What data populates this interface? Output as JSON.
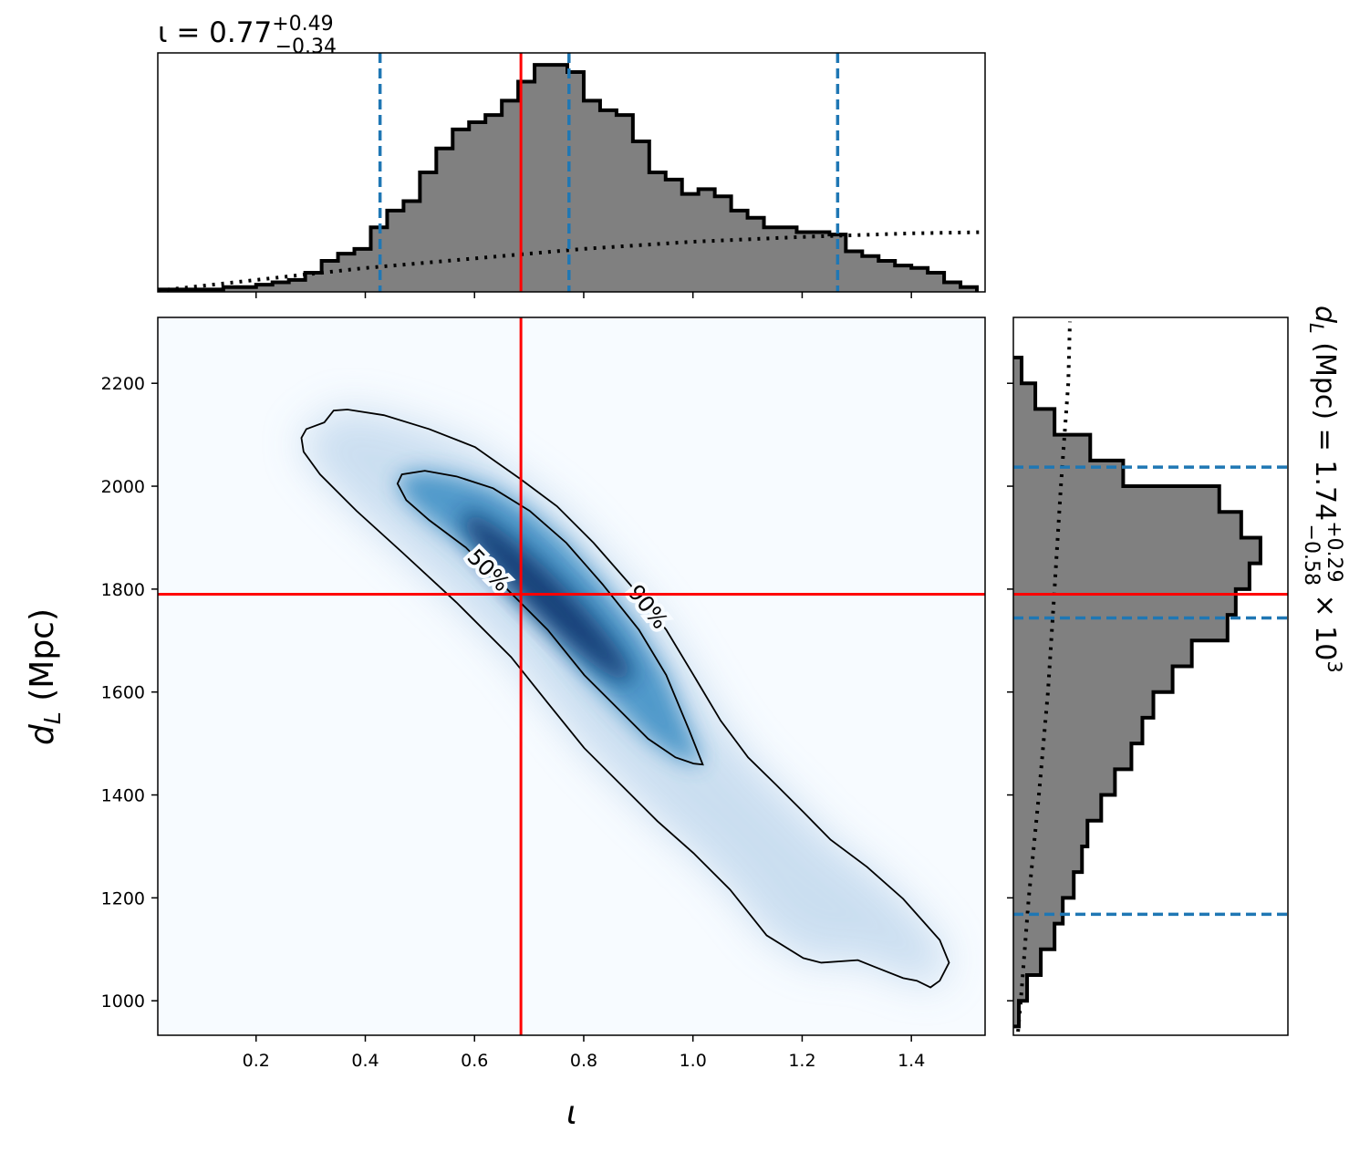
{
  "chart_data": [
    {
      "type": "histogram",
      "orientation": "vertical",
      "title": {
        "main": "ι = 0.77",
        "sup": "+0.49",
        "sub": "−0.34"
      },
      "bins": [
        0.02,
        0.05,
        0.08,
        0.11,
        0.14,
        0.17,
        0.2,
        0.23,
        0.26,
        0.29,
        0.32,
        0.35,
        0.38,
        0.41,
        0.44,
        0.47,
        0.5,
        0.53,
        0.56,
        0.59,
        0.62,
        0.65,
        0.68,
        0.71,
        0.74,
        0.77,
        0.8,
        0.83,
        0.86,
        0.89,
        0.92,
        0.95,
        0.98,
        1.01,
        1.04,
        1.07,
        1.1,
        1.13,
        1.16,
        1.19,
        1.22,
        1.25,
        1.28,
        1.31,
        1.34,
        1.37,
        1.4,
        1.43,
        1.46,
        1.49,
        1.52
      ],
      "values": [
        0.01,
        0.01,
        0.01,
        0.01,
        0.02,
        0.02,
        0.03,
        0.04,
        0.05,
        0.08,
        0.13,
        0.16,
        0.18,
        0.27,
        0.34,
        0.38,
        0.5,
        0.6,
        0.68,
        0.71,
        0.74,
        0.8,
        0.88,
        0.95,
        0.95,
        0.92,
        0.8,
        0.76,
        0.74,
        0.63,
        0.5,
        0.47,
        0.41,
        0.43,
        0.4,
        0.34,
        0.31,
        0.27,
        0.27,
        0.25,
        0.25,
        0.24,
        0.17,
        0.15,
        0.13,
        0.11,
        0.1,
        0.08,
        0.04,
        0.02
      ],
      "color": "#808080",
      "edgecolor": "#000000",
      "prior": {
        "x": [
          0.02,
          0.2,
          0.4,
          0.6,
          0.8,
          1.0,
          1.2,
          1.4,
          1.535
        ],
        "values": [
          0.005,
          0.05,
          0.1,
          0.14,
          0.18,
          0.21,
          0.23,
          0.245,
          0.25
        ]
      },
      "truth": 0.685,
      "truth_color": "#ff0000",
      "quantiles": [
        0.427,
        0.773,
        1.265
      ],
      "quantile_color": "#1f77b4",
      "xlim": [
        0.02,
        1.535
      ],
      "ylim": [
        0,
        1
      ]
    },
    {
      "type": "contour",
      "xlabel": "ι",
      "ylabel": {
        "symbol": "d",
        "subscript": "L",
        "unit": " (Mpc)"
      },
      "colormap": "Blues",
      "contours": [
        {
          "label": "50%",
          "x": [
            0.459,
            0.467,
            0.509,
            0.567,
            0.634,
            0.701,
            0.768,
            0.834,
            0.901,
            0.951,
            0.993,
            1.018,
            1.001,
            0.968,
            0.918,
            0.868,
            0.801,
            0.734,
            0.667,
            0.584,
            0.517,
            0.475
          ],
          "y": [
            2005,
            2023,
            2030,
            2019,
            1996,
            1952,
            1890,
            1810,
            1721,
            1633,
            1526,
            1459,
            1461,
            1473,
            1509,
            1562,
            1633,
            1721,
            1792,
            1881,
            1934,
            1973
          ]
        },
        {
          "label": "90%",
          "x": [
            0.283,
            0.292,
            0.325,
            0.342,
            0.367,
            0.434,
            0.517,
            0.601,
            0.684,
            0.751,
            0.818,
            0.884,
            0.951,
            1.001,
            1.051,
            1.101,
            1.152,
            1.202,
            1.252,
            1.319,
            1.385,
            1.452,
            1.469,
            1.452,
            1.435,
            1.41,
            1.385,
            1.335,
            1.302,
            1.235,
            1.202,
            1.135,
            1.068,
            1.001,
            0.935,
            0.868,
            0.801,
            0.734,
            0.667,
            0.567,
            0.467,
            0.384,
            0.317,
            0.287
          ],
          "y": [
            2094,
            2111,
            2124,
            2147,
            2149,
            2138,
            2111,
            2076,
            2014,
            1961,
            1890,
            1810,
            1721,
            1633,
            1544,
            1473,
            1420,
            1367,
            1313,
            1260,
            1198,
            1118,
            1074,
            1039,
            1026,
            1039,
            1044,
            1065,
            1079,
            1074,
            1083,
            1127,
            1216,
            1287,
            1349,
            1420,
            1491,
            1579,
            1668,
            1774,
            1872,
            1952,
            2023,
            2067
          ]
        }
      ],
      "truth": {
        "x": 0.685,
        "y": 1790
      },
      "truth_color": "#ff0000",
      "xlim": [
        0.02,
        1.535
      ],
      "ylim": [
        933,
        2328
      ],
      "xticks": [
        0.2,
        0.4,
        0.6,
        0.8,
        {
          "value": 1,
          "label": "1.0"
        },
        1.2,
        1.4
      ],
      "yticks": [
        1000,
        1200,
        1400,
        1600,
        1800,
        2000,
        2200
      ]
    },
    {
      "type": "histogram",
      "orientation": "horizontal",
      "ylabel": {
        "symbol": "d",
        "subscript": "L",
        "main": " (Mpc) = 1.74",
        "sup": "+0.29",
        "sub": "−0.58",
        "tail": " × 10",
        "exp": "3"
      },
      "bins": [
        950,
        1000,
        1050,
        1100,
        1150,
        1200,
        1250,
        1300,
        1350,
        1400,
        1450,
        1500,
        1550,
        1600,
        1650,
        1700,
        1750,
        1800,
        1850,
        1900,
        1950,
        2000,
        2050,
        2100,
        2150,
        2200,
        2250
      ],
      "values": [
        0.02,
        0.05,
        0.1,
        0.15,
        0.18,
        0.22,
        0.25,
        0.27,
        0.32,
        0.37,
        0.43,
        0.47,
        0.51,
        0.58,
        0.65,
        0.78,
        0.81,
        0.86,
        0.9,
        0.83,
        0.75,
        0.4,
        0.28,
        0.15,
        0.08,
        0.03
      ],
      "color": "#808080",
      "edgecolor": "#000000",
      "prior": {
        "y": [
          940,
          1000,
          1200,
          1400,
          1600,
          1800,
          2000,
          2200,
          2320
        ],
        "values": [
          0.017,
          0.027,
          0.056,
          0.093,
          0.126,
          0.15,
          0.173,
          0.2,
          0.206
        ]
      },
      "truth": 1790,
      "truth_color": "#ff0000",
      "quantiles": [
        1168,
        1744,
        2037
      ],
      "quantile_color": "#1f77b4",
      "xlim": [
        0,
        1
      ],
      "ylim": [
        933,
        2328
      ]
    }
  ]
}
